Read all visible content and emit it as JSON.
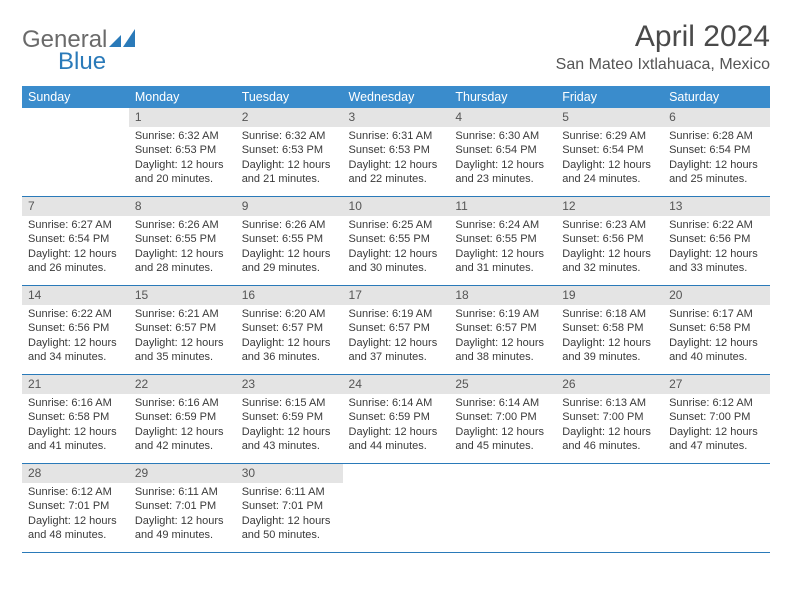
{
  "logo": {
    "word1": "General",
    "word2": "Blue"
  },
  "title": "April 2024",
  "location": "San Mateo Ixtlahuaca, Mexico",
  "colors": {
    "header_bg": "#3a8ccc",
    "header_fg": "#ffffff",
    "rule": "#2a7ab9",
    "daynum_bg": "#e4e4e4",
    "text": "#3a3a3a",
    "logo_gray": "#6a6a6a",
    "logo_blue": "#2a7ab9",
    "page_bg": "#ffffff"
  },
  "day_headers": [
    "Sunday",
    "Monday",
    "Tuesday",
    "Wednesday",
    "Thursday",
    "Friday",
    "Saturday"
  ],
  "weeks": [
    [
      {
        "n": "",
        "sr": "",
        "ss": "",
        "dl1": "",
        "dl2": ""
      },
      {
        "n": "1",
        "sr": "Sunrise: 6:32 AM",
        "ss": "Sunset: 6:53 PM",
        "dl1": "Daylight: 12 hours",
        "dl2": "and 20 minutes."
      },
      {
        "n": "2",
        "sr": "Sunrise: 6:32 AM",
        "ss": "Sunset: 6:53 PM",
        "dl1": "Daylight: 12 hours",
        "dl2": "and 21 minutes."
      },
      {
        "n": "3",
        "sr": "Sunrise: 6:31 AM",
        "ss": "Sunset: 6:53 PM",
        "dl1": "Daylight: 12 hours",
        "dl2": "and 22 minutes."
      },
      {
        "n": "4",
        "sr": "Sunrise: 6:30 AM",
        "ss": "Sunset: 6:54 PM",
        "dl1": "Daylight: 12 hours",
        "dl2": "and 23 minutes."
      },
      {
        "n": "5",
        "sr": "Sunrise: 6:29 AM",
        "ss": "Sunset: 6:54 PM",
        "dl1": "Daylight: 12 hours",
        "dl2": "and 24 minutes."
      },
      {
        "n": "6",
        "sr": "Sunrise: 6:28 AM",
        "ss": "Sunset: 6:54 PM",
        "dl1": "Daylight: 12 hours",
        "dl2": "and 25 minutes."
      }
    ],
    [
      {
        "n": "7",
        "sr": "Sunrise: 6:27 AM",
        "ss": "Sunset: 6:54 PM",
        "dl1": "Daylight: 12 hours",
        "dl2": "and 26 minutes."
      },
      {
        "n": "8",
        "sr": "Sunrise: 6:26 AM",
        "ss": "Sunset: 6:55 PM",
        "dl1": "Daylight: 12 hours",
        "dl2": "and 28 minutes."
      },
      {
        "n": "9",
        "sr": "Sunrise: 6:26 AM",
        "ss": "Sunset: 6:55 PM",
        "dl1": "Daylight: 12 hours",
        "dl2": "and 29 minutes."
      },
      {
        "n": "10",
        "sr": "Sunrise: 6:25 AM",
        "ss": "Sunset: 6:55 PM",
        "dl1": "Daylight: 12 hours",
        "dl2": "and 30 minutes."
      },
      {
        "n": "11",
        "sr": "Sunrise: 6:24 AM",
        "ss": "Sunset: 6:55 PM",
        "dl1": "Daylight: 12 hours",
        "dl2": "and 31 minutes."
      },
      {
        "n": "12",
        "sr": "Sunrise: 6:23 AM",
        "ss": "Sunset: 6:56 PM",
        "dl1": "Daylight: 12 hours",
        "dl2": "and 32 minutes."
      },
      {
        "n": "13",
        "sr": "Sunrise: 6:22 AM",
        "ss": "Sunset: 6:56 PM",
        "dl1": "Daylight: 12 hours",
        "dl2": "and 33 minutes."
      }
    ],
    [
      {
        "n": "14",
        "sr": "Sunrise: 6:22 AM",
        "ss": "Sunset: 6:56 PM",
        "dl1": "Daylight: 12 hours",
        "dl2": "and 34 minutes."
      },
      {
        "n": "15",
        "sr": "Sunrise: 6:21 AM",
        "ss": "Sunset: 6:57 PM",
        "dl1": "Daylight: 12 hours",
        "dl2": "and 35 minutes."
      },
      {
        "n": "16",
        "sr": "Sunrise: 6:20 AM",
        "ss": "Sunset: 6:57 PM",
        "dl1": "Daylight: 12 hours",
        "dl2": "and 36 minutes."
      },
      {
        "n": "17",
        "sr": "Sunrise: 6:19 AM",
        "ss": "Sunset: 6:57 PM",
        "dl1": "Daylight: 12 hours",
        "dl2": "and 37 minutes."
      },
      {
        "n": "18",
        "sr": "Sunrise: 6:19 AM",
        "ss": "Sunset: 6:57 PM",
        "dl1": "Daylight: 12 hours",
        "dl2": "and 38 minutes."
      },
      {
        "n": "19",
        "sr": "Sunrise: 6:18 AM",
        "ss": "Sunset: 6:58 PM",
        "dl1": "Daylight: 12 hours",
        "dl2": "and 39 minutes."
      },
      {
        "n": "20",
        "sr": "Sunrise: 6:17 AM",
        "ss": "Sunset: 6:58 PM",
        "dl1": "Daylight: 12 hours",
        "dl2": "and 40 minutes."
      }
    ],
    [
      {
        "n": "21",
        "sr": "Sunrise: 6:16 AM",
        "ss": "Sunset: 6:58 PM",
        "dl1": "Daylight: 12 hours",
        "dl2": "and 41 minutes."
      },
      {
        "n": "22",
        "sr": "Sunrise: 6:16 AM",
        "ss": "Sunset: 6:59 PM",
        "dl1": "Daylight: 12 hours",
        "dl2": "and 42 minutes."
      },
      {
        "n": "23",
        "sr": "Sunrise: 6:15 AM",
        "ss": "Sunset: 6:59 PM",
        "dl1": "Daylight: 12 hours",
        "dl2": "and 43 minutes."
      },
      {
        "n": "24",
        "sr": "Sunrise: 6:14 AM",
        "ss": "Sunset: 6:59 PM",
        "dl1": "Daylight: 12 hours",
        "dl2": "and 44 minutes."
      },
      {
        "n": "25",
        "sr": "Sunrise: 6:14 AM",
        "ss": "Sunset: 7:00 PM",
        "dl1": "Daylight: 12 hours",
        "dl2": "and 45 minutes."
      },
      {
        "n": "26",
        "sr": "Sunrise: 6:13 AM",
        "ss": "Sunset: 7:00 PM",
        "dl1": "Daylight: 12 hours",
        "dl2": "and 46 minutes."
      },
      {
        "n": "27",
        "sr": "Sunrise: 6:12 AM",
        "ss": "Sunset: 7:00 PM",
        "dl1": "Daylight: 12 hours",
        "dl2": "and 47 minutes."
      }
    ],
    [
      {
        "n": "28",
        "sr": "Sunrise: 6:12 AM",
        "ss": "Sunset: 7:01 PM",
        "dl1": "Daylight: 12 hours",
        "dl2": "and 48 minutes."
      },
      {
        "n": "29",
        "sr": "Sunrise: 6:11 AM",
        "ss": "Sunset: 7:01 PM",
        "dl1": "Daylight: 12 hours",
        "dl2": "and 49 minutes."
      },
      {
        "n": "30",
        "sr": "Sunrise: 6:11 AM",
        "ss": "Sunset: 7:01 PM",
        "dl1": "Daylight: 12 hours",
        "dl2": "and 50 minutes."
      },
      {
        "n": "",
        "sr": "",
        "ss": "",
        "dl1": "",
        "dl2": ""
      },
      {
        "n": "",
        "sr": "",
        "ss": "",
        "dl1": "",
        "dl2": ""
      },
      {
        "n": "",
        "sr": "",
        "ss": "",
        "dl1": "",
        "dl2": ""
      },
      {
        "n": "",
        "sr": "",
        "ss": "",
        "dl1": "",
        "dl2": ""
      }
    ]
  ]
}
